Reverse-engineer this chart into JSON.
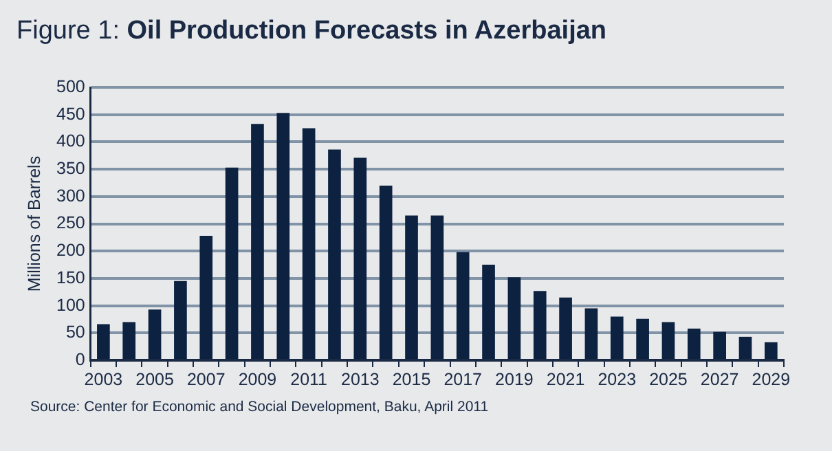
{
  "chart_data": {
    "type": "bar",
    "title": "Figure 1: Oil Production Forecasts in Azerbaijan",
    "ylabel": "Millions of Barrels",
    "categories": [
      "2003",
      null,
      "2005",
      null,
      "2007",
      null,
      "2009",
      null,
      "2011",
      null,
      "2013",
      null,
      "2015",
      null,
      "2017",
      null,
      "2019",
      null,
      "2021",
      null,
      "2023",
      null,
      "2025",
      null,
      "2027",
      null,
      "2029"
    ],
    "values": [
      66,
      70,
      93,
      145,
      228,
      353,
      433,
      453,
      425,
      386,
      371,
      320,
      265,
      265,
      198,
      175,
      152,
      127,
      115,
      95,
      80,
      76,
      70,
      58,
      52,
      43,
      33
    ],
    "color": "#0d2240",
    "ylim": [
      0,
      500
    ],
    "yticks": [
      0,
      50,
      100,
      150,
      200,
      250,
      300,
      350,
      400,
      450,
      500
    ],
    "grid": "y",
    "legend": false,
    "annotations": [
      "Source: Center for Economic and Social Development, Baku, April 2011"
    ]
  }
}
